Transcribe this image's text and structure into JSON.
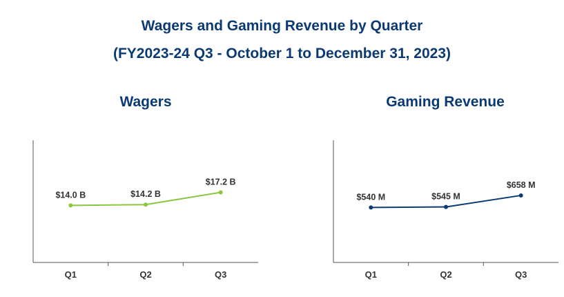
{
  "header": {
    "title_line1": "Wagers and Gaming Revenue by Quarter",
    "title_line2": "(FY2023-24 Q3 - October 1 to December 31, 2023)"
  },
  "chart_data": [
    {
      "type": "line",
      "title": "Wagers",
      "categories": [
        "Q1",
        "Q2",
        "Q3"
      ],
      "values": [
        14.0,
        14.2,
        17.2
      ],
      "data_labels": [
        "$14.0 B",
        "$14.2 B",
        "$17.2 B"
      ],
      "ylim": [
        0,
        30
      ],
      "color": "#8cc63f",
      "grid": false
    },
    {
      "type": "line",
      "title": "Gaming Revenue",
      "categories": [
        "Q1",
        "Q2",
        "Q3"
      ],
      "values": [
        540,
        545,
        658
      ],
      "data_labels": [
        "$540 M",
        "$545 M",
        "$658 M"
      ],
      "ylim": [
        0,
        1200
      ],
      "color": "#0b3a73",
      "grid": false
    }
  ]
}
